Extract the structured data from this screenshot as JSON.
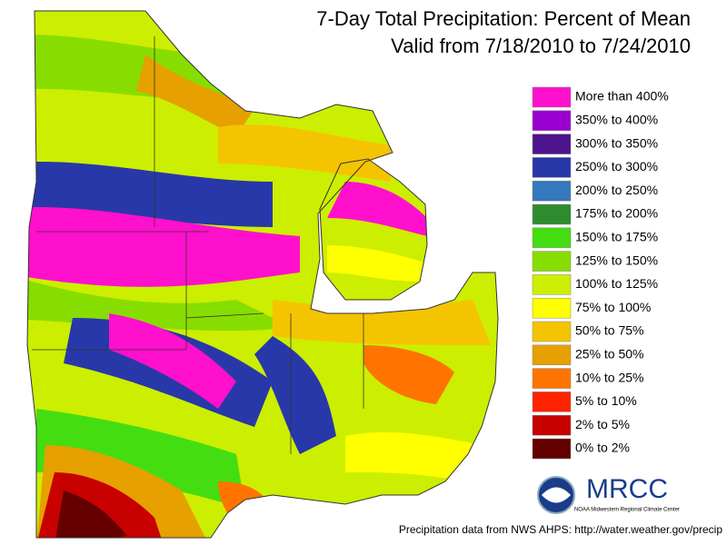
{
  "header": {
    "title": "7-Day Total Precipitation: Percent of Mean",
    "subtitle": "Valid from 7/18/2010 to 7/24/2010"
  },
  "legend": {
    "items": [
      {
        "label": "More than 400%",
        "color": "#ff10cc"
      },
      {
        "label": "350% to 400%",
        "color": "#9a00d0"
      },
      {
        "label": "300% to 350%",
        "color": "#4c148c"
      },
      {
        "label": "250% to 300%",
        "color": "#2838a8"
      },
      {
        "label": "200% to 250%",
        "color": "#3478be"
      },
      {
        "label": "175% to 200%",
        "color": "#2e8c2e"
      },
      {
        "label": "150% to 175%",
        "color": "#44dd12"
      },
      {
        "label": "125% to 150%",
        "color": "#88dd00"
      },
      {
        "label": "100% to 125%",
        "color": "#ccee00"
      },
      {
        "label": "75% to 100%",
        "color": "#ffff00"
      },
      {
        "label": "50% to 75%",
        "color": "#f5c400"
      },
      {
        "label": "25% to 50%",
        "color": "#e6a000"
      },
      {
        "label": "10% to 25%",
        "color": "#ff7400"
      },
      {
        "label": "5% to 10%",
        "color": "#ff2200"
      },
      {
        "label": "2% to 5%",
        "color": "#c80000"
      },
      {
        "label": "0% to 2%",
        "color": "#640000"
      }
    ]
  },
  "logo": {
    "name": "MRCC",
    "caption": "NOAA Midwestern Regional Climate Center"
  },
  "footer": {
    "source": "Precipitation data from NWS AHPS:  http://water.weather.gov/precip"
  }
}
